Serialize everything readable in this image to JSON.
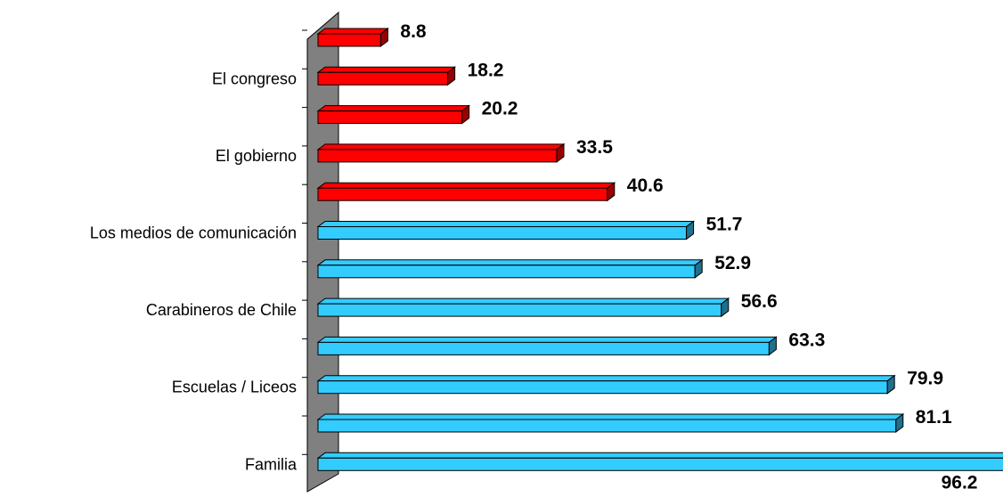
{
  "chart_data": {
    "type": "bar",
    "orientation": "horizontal",
    "three_d": true,
    "categories": [
      "",
      "El congreso",
      "",
      "El  gobierno",
      "",
      "Los medios de comunicación",
      "",
      "Carabineros de Chile",
      "",
      "Escuelas / Liceos",
      "",
      "Familia"
    ],
    "values": [
      8.8,
      18.2,
      20.2,
      33.5,
      40.6,
      51.7,
      52.9,
      56.6,
      63.3,
      79.9,
      81.1,
      96.2
    ],
    "value_labels": [
      "8.8",
      "18.2",
      "20.2",
      "33.5",
      "40.6",
      "51.7",
      "52.9",
      "56.6",
      "63.3",
      "79.9",
      "81.1",
      "96.2"
    ],
    "bar_colors": [
      "#ff0000",
      "#ff0000",
      "#ff0000",
      "#ff0000",
      "#ff0000",
      "#33ccff",
      "#33ccff",
      "#33ccff",
      "#33ccff",
      "#33ccff",
      "#33ccff",
      "#33ccff"
    ],
    "bar_end_colors": [
      "#990000",
      "#990000",
      "#990000",
      "#990000",
      "#990000",
      "#1f6f8f",
      "#1f6f8f",
      "#1f6f8f",
      "#1f6f8f",
      "#1f6f8f",
      "#1f6f8f",
      "#1f6f8f"
    ],
    "wall_color": "#808080",
    "xlim": [
      0,
      100
    ],
    "grid": false,
    "legend": "none",
    "title": "",
    "xlabel": "",
    "ylabel": ""
  }
}
